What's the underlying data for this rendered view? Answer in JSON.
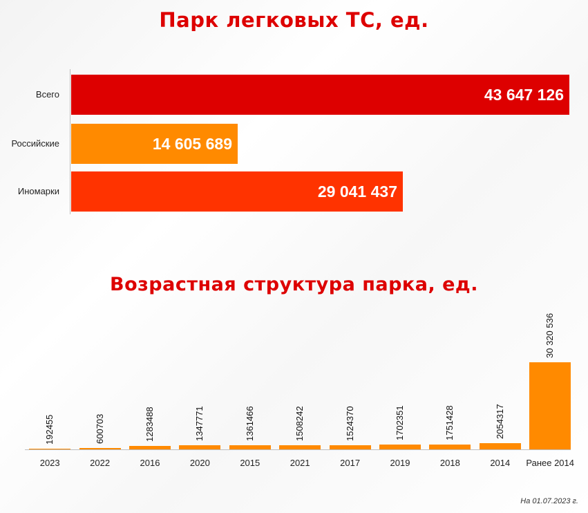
{
  "title_top": "Парк легковых ТС, ед.",
  "title_bottom": "Возрастная структура парка, ед.",
  "footnote": "На 01.07.2023 г.",
  "colors": {
    "title": "#dd0000",
    "total": "#dd0000",
    "russian": "#ff8a00",
    "foreign": "#ff3300",
    "age_bars": "#ff8a00"
  },
  "chart_data": [
    {
      "type": "bar",
      "orientation": "horizontal",
      "categories": [
        "Всего",
        "Российские",
        "Иномарки"
      ],
      "values": [
        43647126,
        14605689,
        29041437
      ],
      "value_labels": [
        "43 647 126",
        "14 605 689",
        "29 041 437"
      ],
      "bar_colors": [
        "#dd0000",
        "#ff8a00",
        "#ff3300"
      ],
      "title": "Парк легковых ТС, ед."
    },
    {
      "type": "bar",
      "orientation": "vertical",
      "categories": [
        "2023",
        "2022",
        "2016",
        "2020",
        "2015",
        "2021",
        "2017",
        "2019",
        "2018",
        "2014",
        "Ранее 2014"
      ],
      "values": [
        192455,
        600703,
        1283488,
        1347771,
        1361466,
        1508242,
        1524370,
        1702351,
        1751428,
        2054317,
        30320536
      ],
      "value_labels": [
        "192455",
        "600703",
        "1283488",
        "1347771",
        "1361466",
        "1508242",
        "1524370",
        "1702351",
        "1751428",
        "2054317",
        "30 320 536"
      ],
      "title": "Возрастная структура парка, ед."
    }
  ]
}
